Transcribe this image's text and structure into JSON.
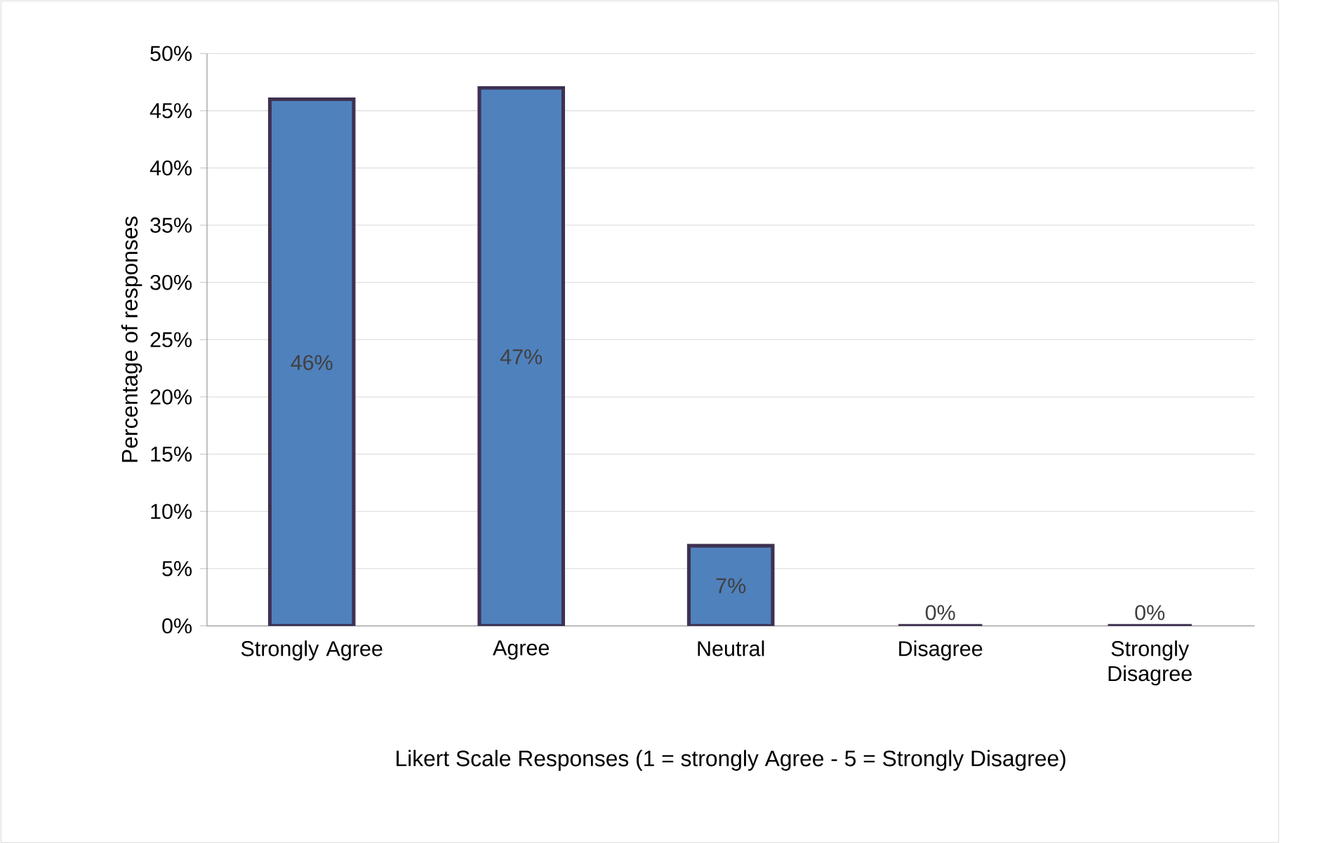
{
  "chart_data": {
    "type": "bar",
    "xlabel": "Likert Scale Responses (1 = strongly Agree - 5 = Strongly Disagree)",
    "ylabel": "Percentage of responses",
    "categories": [
      "Strongly Agree",
      "Agree",
      "Neutral",
      "Disagree",
      "Strongly Disagree"
    ],
    "values": [
      46,
      47,
      7,
      0,
      0
    ],
    "value_labels": [
      "46%",
      "47%",
      "7%",
      "0%",
      "0%"
    ],
    "color": "#4f81bd",
    "ylim": [
      0,
      50
    ],
    "yticks": [
      {
        "value": 0,
        "label": "0%"
      },
      {
        "value": 5,
        "label": "5%"
      },
      {
        "value": 10,
        "label": "10%"
      },
      {
        "value": 15,
        "label": "15%"
      },
      {
        "value": 20,
        "label": "20%"
      },
      {
        "value": 25,
        "label": "25%"
      },
      {
        "value": 30,
        "label": "30%"
      },
      {
        "value": 35,
        "label": "35%"
      },
      {
        "value": 40,
        "label": "40%"
      },
      {
        "value": 45,
        "label": "45%"
      },
      {
        "value": 50,
        "label": "50%"
      }
    ],
    "grid": "y"
  }
}
